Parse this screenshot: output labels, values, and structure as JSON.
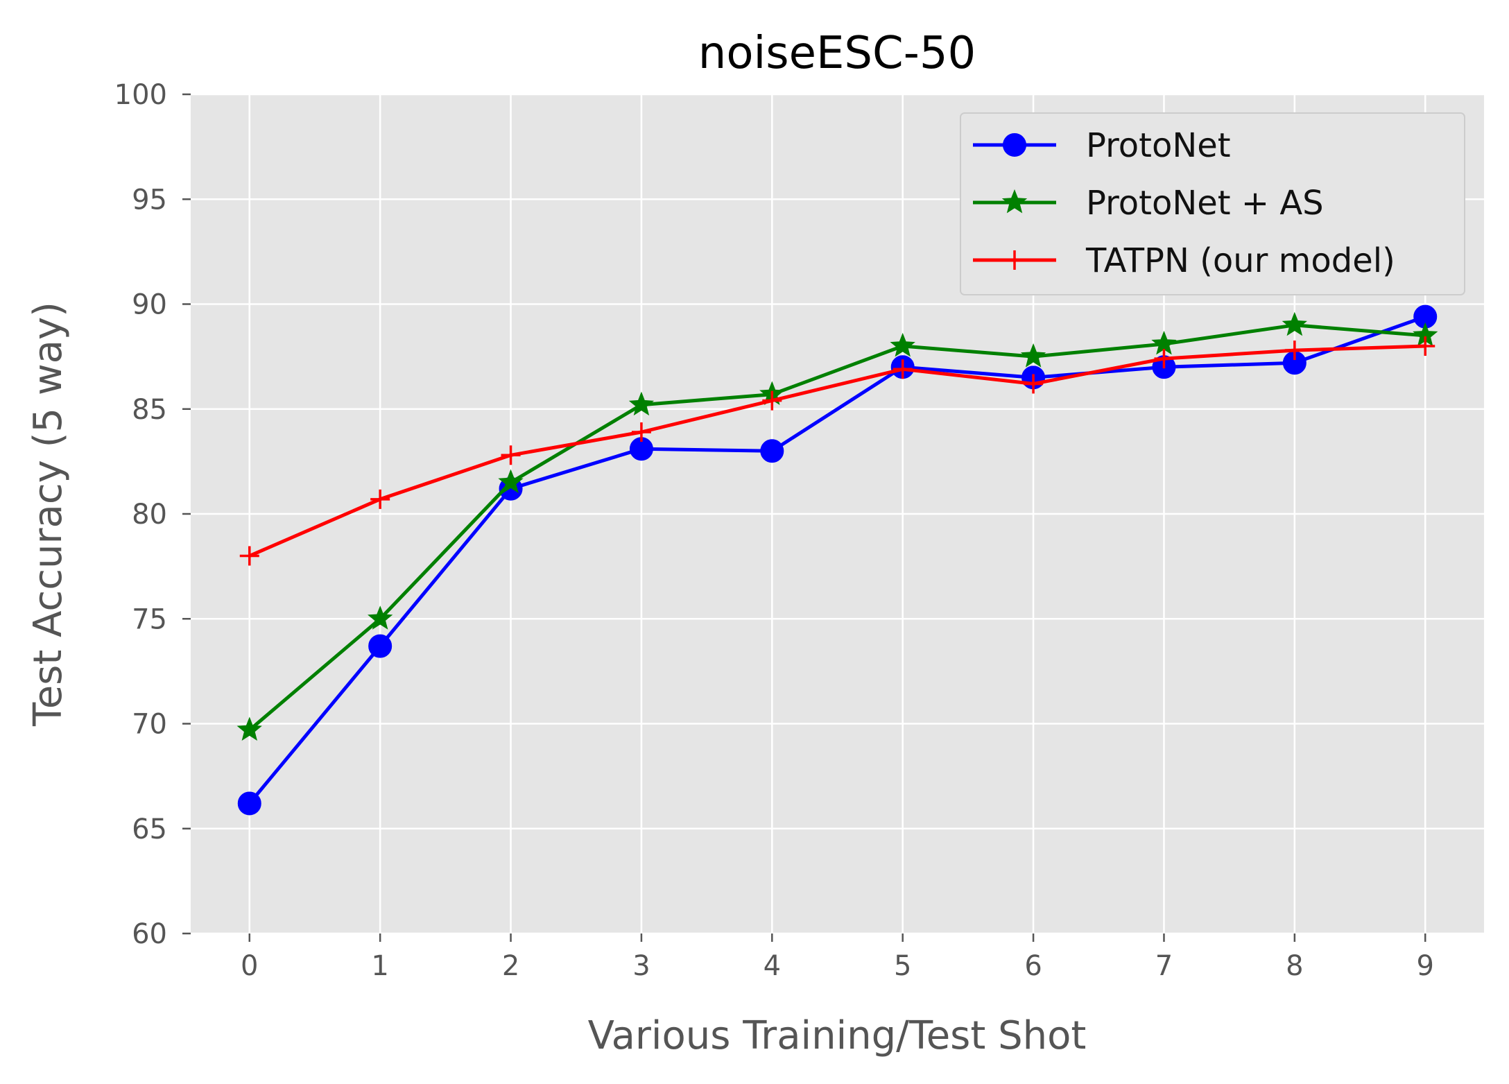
{
  "chart_data": {
    "type": "line",
    "title": "noiseESC-50",
    "xlabel": "Various Training/Test Shot",
    "ylabel": "Test Accuracy (5 way)",
    "x": [
      0,
      1,
      2,
      3,
      4,
      5,
      6,
      7,
      8,
      9
    ],
    "xlim": [
      -0.45,
      9.45
    ],
    "ylim": [
      60,
      100
    ],
    "yticks": [
      60,
      65,
      70,
      75,
      80,
      85,
      90,
      95,
      100
    ],
    "xticks": [
      0,
      1,
      2,
      3,
      4,
      5,
      6,
      7,
      8,
      9
    ],
    "grid": true,
    "legend_position": "top-right",
    "series": [
      {
        "name": "ProtoNet",
        "color": "#0000ff",
        "marker": "circle",
        "values": [
          66.2,
          73.7,
          81.2,
          83.1,
          83.0,
          87.0,
          86.5,
          87.0,
          87.2,
          89.4
        ]
      },
      {
        "name": "ProtoNet + AS",
        "color": "#008000",
        "marker": "star",
        "values": [
          69.7,
          75.0,
          81.5,
          85.2,
          85.7,
          88.0,
          87.5,
          88.1,
          89.0,
          88.5
        ]
      },
      {
        "name": "TATPN (our model)",
        "color": "#ff0000",
        "marker": "plus",
        "values": [
          78.0,
          80.7,
          82.8,
          83.9,
          85.4,
          86.9,
          86.2,
          87.4,
          87.8,
          88.0
        ]
      }
    ]
  }
}
